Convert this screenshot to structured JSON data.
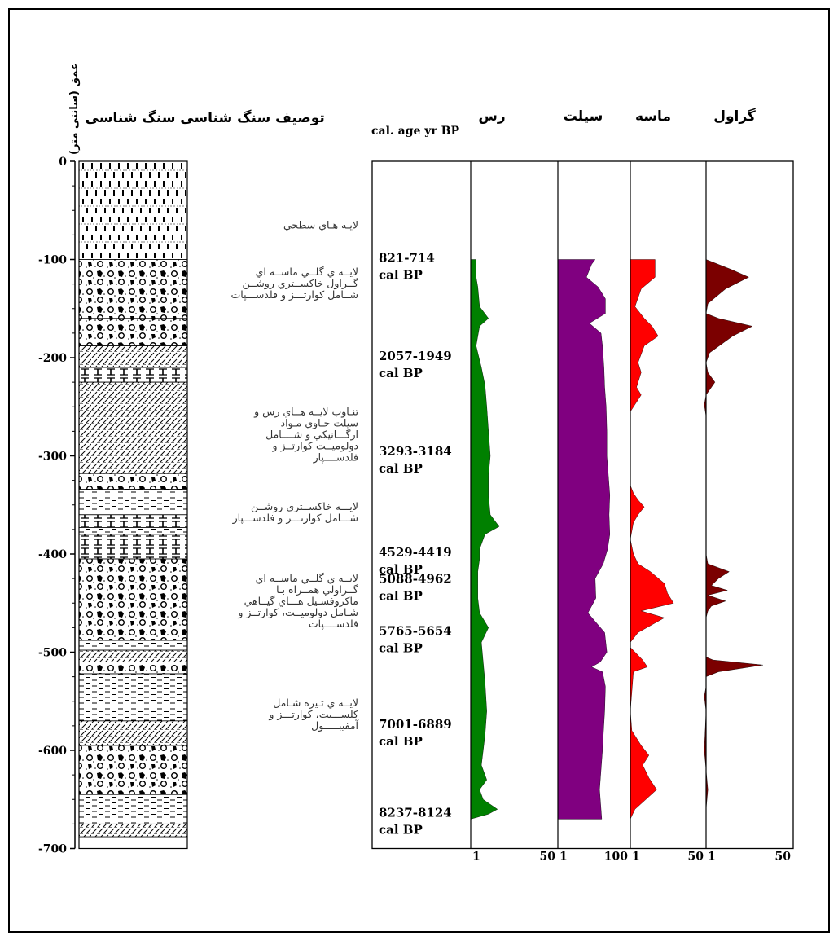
{
  "headers": {
    "depth": "عمق (سانتی متر)",
    "lithology": "سنگ شناسی",
    "description": "توصیف سنگ شناسی",
    "age": "cal. age yr BP",
    "clay": "رس",
    "silt": "سيلت",
    "sand": "ماسه",
    "gravel": "گراول"
  },
  "depth_ticks": [
    "0",
    "-100",
    "-200",
    "-300",
    "-400",
    "-500",
    "-600",
    "-700"
  ],
  "descriptions": [
    {
      "depth": 60,
      "lines": [
        "لايـه هـاي سطحي"
      ]
    },
    {
      "depth": 108,
      "lines": [
        "لايــه ي گلــي ماســه اي",
        "گــراول خاكســتري روشــن",
        "شــامل كوارتـــز و فلدســـپات"
      ]
    },
    {
      "depth": 250,
      "lines": [
        "تنـاوب لايــه هــاي رس و",
        "سيلت حـاوي مـواد",
        "ارگـــانيكي و شــــامل",
        "دولوميــت كوارتــز و",
        "فلدســــپار"
      ]
    },
    {
      "depth": 347,
      "lines": [
        "لايـــه خاكســتري روشــن",
        "شـــامل كوارتـــز و فلدســـپار"
      ]
    },
    {
      "depth": 420,
      "lines": [
        "لايــه ي گلــي ماســه اي",
        "گــراولي همــراه بـا",
        "ماكروفسـيل هـــاي گيــاهي",
        "شـامل دولوميــت، كوارتــز و",
        "فلدســــپات"
      ]
    },
    {
      "depth": 547,
      "lines": [
        "لايــه ي تـيره شـامل",
        "كلســـيت، كوارتـــز و",
        "آمفيبـــــول"
      ]
    }
  ],
  "ages": [
    {
      "depth": 100,
      "range": "821-714",
      "unit": "cal BP"
    },
    {
      "depth": 200,
      "range": "2057-1949",
      "unit": "cal BP"
    },
    {
      "depth": 297,
      "range": "3293-3184",
      "unit": "cal BP"
    },
    {
      "depth": 400,
      "range": "4529-4419",
      "unit": "cal BP"
    },
    {
      "depth": 427,
      "range": "5088-4962",
      "unit": "cal BP"
    },
    {
      "depth": 480,
      "range": "5765-5654",
      "unit": "cal BP"
    },
    {
      "depth": 575,
      "range": "7001-6889",
      "unit": "cal BP"
    },
    {
      "depth": 665,
      "range": "8237-8124",
      "unit": "cal BP"
    }
  ],
  "scales": {
    "clay": [
      "1",
      "50"
    ],
    "silt": [
      "1",
      "100"
    ],
    "sand": [
      "1",
      "50"
    ],
    "gravel": [
      "1",
      "50"
    ]
  },
  "lith_units": [
    {
      "top": 0,
      "bottom": 100,
      "pattern": "peat"
    },
    {
      "top": 100,
      "bottom": 160,
      "pattern": "gravel"
    },
    {
      "top": 160,
      "bottom": 188,
      "pattern": "gravel"
    },
    {
      "top": 188,
      "bottom": 210,
      "pattern": "hatch"
    },
    {
      "top": 210,
      "bottom": 225,
      "pattern": "dolo"
    },
    {
      "top": 225,
      "bottom": 318,
      "pattern": "hatch"
    },
    {
      "top": 318,
      "bottom": 334,
      "pattern": "gravel"
    },
    {
      "top": 334,
      "bottom": 360,
      "pattern": "dash"
    },
    {
      "top": 360,
      "bottom": 373,
      "pattern": "dolo"
    },
    {
      "top": 373,
      "bottom": 380,
      "pattern": "dash"
    },
    {
      "top": 380,
      "bottom": 405,
      "pattern": "dolo"
    },
    {
      "top": 405,
      "bottom": 488,
      "pattern": "gravel"
    },
    {
      "top": 488,
      "bottom": 498,
      "pattern": "dash"
    },
    {
      "top": 498,
      "bottom": 510,
      "pattern": "hatch"
    },
    {
      "top": 510,
      "bottom": 522,
      "pattern": "gravel"
    },
    {
      "top": 522,
      "bottom": 570,
      "pattern": "dash"
    },
    {
      "top": 570,
      "bottom": 595,
      "pattern": "hatch"
    },
    {
      "top": 595,
      "bottom": 645,
      "pattern": "gravel"
    },
    {
      "top": 645,
      "bottom": 675,
      "pattern": "dash"
    },
    {
      "top": 675,
      "bottom": 688,
      "pattern": "hatch"
    }
  ],
  "chart_data": [
    {
      "type": "area",
      "title": "رس",
      "xlim": [
        1,
        50
      ],
      "color": "#008000",
      "depth": [
        100,
        118,
        128,
        148,
        160,
        168,
        188,
        210,
        228,
        250,
        275,
        300,
        320,
        340,
        360,
        372,
        380,
        395,
        405,
        418,
        430,
        445,
        460,
        475,
        490,
        510,
        530,
        560,
        585,
        600,
        615,
        630,
        640,
        650,
        660,
        665,
        670
      ],
      "values": [
        4,
        4,
        5,
        6,
        11,
        6,
        4,
        7,
        9,
        10,
        11,
        12,
        11,
        11,
        12,
        17,
        9,
        6,
        6,
        5,
        5,
        5,
        6,
        11,
        7,
        8,
        9,
        10,
        9,
        8,
        7,
        10,
        6,
        8,
        16,
        11,
        1
      ]
    },
    {
      "type": "area",
      "title": "سيلت",
      "xlim": [
        1,
        100
      ],
      "color": "#800080",
      "depth": [
        100,
        105,
        118,
        128,
        140,
        155,
        165,
        175,
        188,
        210,
        230,
        250,
        275,
        300,
        320,
        340,
        360,
        380,
        395,
        410,
        425,
        445,
        460,
        480,
        500,
        510,
        515,
        520,
        535,
        560,
        585,
        600,
        620,
        640,
        660,
        670
      ],
      "values": [
        52,
        47,
        40,
        56,
        66,
        66,
        44,
        60,
        62,
        64,
        65,
        67,
        68,
        68,
        70,
        72,
        71,
        72,
        69,
        63,
        52,
        53,
        42,
        65,
        68,
        59,
        47,
        62,
        66,
        65,
        63,
        62,
        60,
        58,
        60,
        61
      ]
    },
    {
      "type": "area",
      "title": "ماسه",
      "xlim": [
        1,
        50
      ],
      "color": "#ff0000",
      "depth": [
        100,
        118,
        130,
        148,
        160,
        168,
        178,
        188,
        205,
        215,
        230,
        238,
        255,
        330,
        338,
        345,
        352,
        360,
        368,
        385,
        400,
        410,
        418,
        430,
        440,
        450,
        458,
        465,
        480,
        490,
        495,
        508,
        515,
        520,
        540,
        560,
        580,
        595,
        605,
        615,
        628,
        640,
        650,
        660,
        670
      ],
      "values": [
        17,
        17,
        8,
        4,
        10,
        15,
        19,
        10,
        6,
        8,
        5,
        8,
        1,
        1,
        3,
        6,
        10,
        6,
        3,
        1,
        3,
        6,
        14,
        23,
        25,
        29,
        8,
        23,
        6,
        1,
        1,
        9,
        12,
        3,
        2,
        1,
        2,
        8,
        13,
        9,
        13,
        18,
        11,
        4,
        1
      ]
    },
    {
      "type": "area",
      "title": "گراول",
      "xlim": [
        1,
        50
      ],
      "color": "#7b0000",
      "depth": [
        100,
        110,
        118,
        130,
        145,
        155,
        160,
        168,
        178,
        195,
        205,
        215,
        225,
        238,
        248,
        260,
        400,
        410,
        418,
        425,
        432,
        437,
        442,
        448,
        453,
        458,
        465,
        475,
        505,
        508,
        513,
        520,
        525,
        535,
        545,
        560,
        600,
        620,
        640,
        660,
        670
      ],
      "values": [
        1,
        15,
        25,
        12,
        2,
        1,
        8,
        27,
        16,
        3,
        1,
        2,
        6,
        1,
        0,
        1,
        1,
        2,
        14,
        8,
        4,
        13,
        2,
        12,
        4,
        2,
        1,
        1,
        1,
        5,
        33,
        8,
        1,
        1,
        0,
        1,
        0,
        1,
        2,
        1,
        1
      ]
    }
  ]
}
